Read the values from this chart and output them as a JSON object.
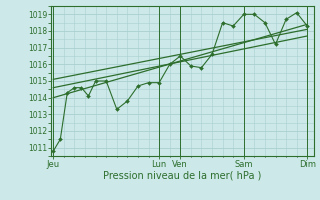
{
  "xlabel": "Pression niveau de la mer( hPa )",
  "bg_color": "#cce8e8",
  "grid_color": "#aacfcf",
  "line_color": "#2d6e2d",
  "ylim": [
    1010.5,
    1019.5
  ],
  "yticks": [
    1011,
    1012,
    1013,
    1014,
    1015,
    1016,
    1017,
    1018,
    1019
  ],
  "xlim": [
    -0.1,
    12.3
  ],
  "day_labels": [
    "Jeu",
    "Lun",
    "Ven",
    "Sam",
    "Dim"
  ],
  "day_positions": [
    0,
    5,
    6,
    9,
    12
  ],
  "zigzag_x": [
    0,
    0.33,
    0.66,
    1.0,
    1.33,
    1.66,
    2.0,
    2.5,
    3.0,
    3.5,
    4.0,
    4.5,
    5.0,
    5.5,
    6.0,
    6.5,
    7.0,
    7.5,
    8.0,
    8.5,
    9.0,
    9.5,
    10.0,
    10.5,
    11.0,
    11.5,
    12.0
  ],
  "zigzag_y": [
    1010.8,
    1011.5,
    1014.3,
    1014.6,
    1014.6,
    1014.1,
    1015.0,
    1015.0,
    1013.3,
    1013.8,
    1014.7,
    1014.9,
    1014.9,
    1016.0,
    1016.5,
    1015.9,
    1015.8,
    1016.6,
    1018.5,
    1018.3,
    1019.0,
    1019.0,
    1018.5,
    1017.2,
    1018.7,
    1019.1,
    1018.3
  ],
  "trend1_x": [
    0,
    12
  ],
  "trend1_y": [
    1014.0,
    1018.4
  ],
  "trend2_x": [
    0,
    12
  ],
  "trend2_y": [
    1014.6,
    1017.7
  ],
  "trend3_x": [
    0,
    12
  ],
  "trend3_y": [
    1015.1,
    1018.1
  ],
  "vline_positions": [
    0,
    5,
    6,
    9,
    12
  ]
}
